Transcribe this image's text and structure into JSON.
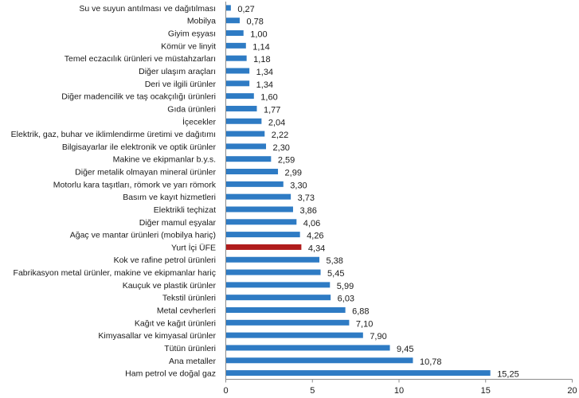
{
  "chart_data": {
    "type": "bar",
    "orientation": "horizontal",
    "title": "",
    "xlabel": "",
    "ylabel": "",
    "xlim": [
      0,
      20
    ],
    "x_ticks": [
      0,
      5,
      10,
      15,
      20
    ],
    "x_tick_labels": [
      "0",
      "5",
      "10",
      "15",
      "20"
    ],
    "grid": false,
    "legend": "none",
    "colors": {
      "default": "#2e7bc4",
      "highlight": "#b01c1c"
    },
    "highlight_category": "Yurt İçi ÜFE",
    "categories": [
      "Su ve suyun antılması ve dağıtılması",
      "Mobilya",
      "Giyim eşyası",
      "Kömür ve linyit",
      "Temel eczacılık ürünleri ve müstahzarları",
      "Diğer ulaşım araçları",
      "Deri ve ilgili ürünler",
      "Diğer madencilik ve taş ocakçılığı ürünleri",
      "Gıda ürünleri",
      "İçecekler",
      "Elektrik, gaz, buhar ve iklimlendirme üretimi ve dağıtımı",
      "Bilgisayarlar ile elektronik ve optik ürünler",
      "Makine ve ekipmanlar b.y.s.",
      "Diğer metalik olmayan mineral ürünler",
      "Motorlu kara taşıtları, römork ve yarı römork",
      "Basım ve kayıt hizmetleri",
      "Elektrikli teçhizat",
      "Diğer mamul eşyalar",
      "Ağaç ve mantar ürünleri (mobilya hariç)",
      "Yurt İçi ÜFE",
      "Kok ve rafine petrol ürünleri",
      "Fabrikasyon metal ürünler, makine ve ekipmanlar hariç",
      "Kauçuk ve plastik ürünler",
      "Tekstil ürünleri",
      "Metal cevherleri",
      "Kağıt ve kağıt ürünleri",
      "Kimyasallar ve kimyasal ürünler",
      "Tütün ürünleri",
      "Ana metaller",
      "Ham petrol ve doğal gaz"
    ],
    "values": [
      0.27,
      0.78,
      1.0,
      1.14,
      1.18,
      1.34,
      1.34,
      1.6,
      1.77,
      2.04,
      2.22,
      2.3,
      2.59,
      2.99,
      3.3,
      3.73,
      3.86,
      4.06,
      4.26,
      4.34,
      5.38,
      5.45,
      5.99,
      6.03,
      6.88,
      7.1,
      7.9,
      9.45,
      10.78,
      15.25
    ],
    "value_labels": [
      "0,27",
      "0,78",
      "1,00",
      "1,14",
      "1,18",
      "1,34",
      "1,34",
      "1,60",
      "1,77",
      "2,04",
      "2,22",
      "2,30",
      "2,59",
      "2,99",
      "3,30",
      "3,73",
      "3,86",
      "4,06",
      "4,26",
      "4,34",
      "5,38",
      "5,45",
      "5,99",
      "6,03",
      "6,88",
      "7,10",
      "7,90",
      "9,45",
      "10,78",
      "15,25"
    ]
  }
}
